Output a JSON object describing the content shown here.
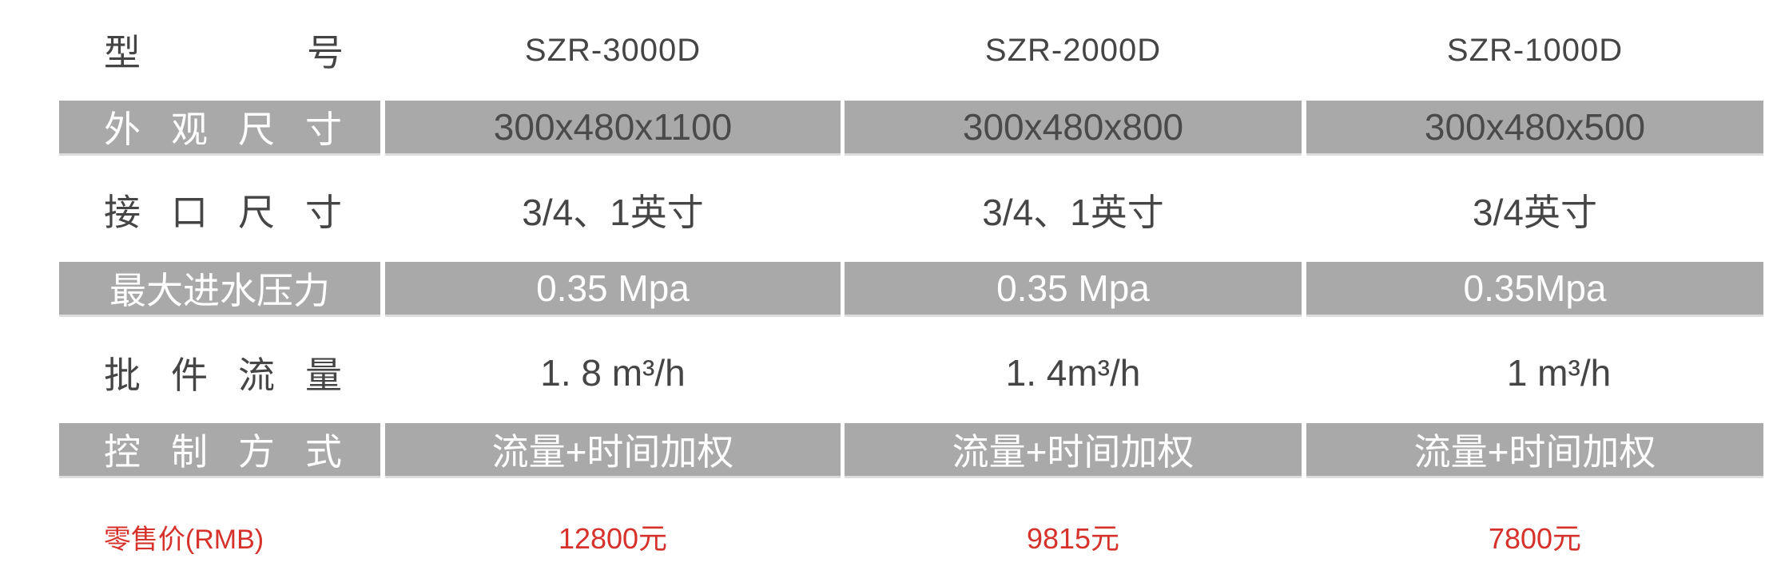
{
  "colors": {
    "band": "#a9a9a9",
    "text": "#454545",
    "price": "#d6312a"
  },
  "rows": [
    {
      "label": "型号",
      "label_chars": [
        "型",
        "号"
      ],
      "values": [
        "SZR-3000D",
        "SZR-2000D",
        "SZR-1000D"
      ]
    },
    {
      "label": "外观尺寸",
      "label_chars": [
        "外",
        "观",
        "尺",
        "寸"
      ],
      "values": [
        "300x480x1100",
        "300x480x800",
        "300x480x500"
      ]
    },
    {
      "label": "接口尺寸",
      "label_chars": [
        "接",
        "口",
        "尺",
        "寸"
      ],
      "values": [
        "3/4、1英寸",
        "3/4、1英寸",
        "3/4英寸"
      ]
    },
    {
      "label": "最大进水压力",
      "values": [
        "0.35 Mpa",
        "0.35 Mpa",
        "0.35Mpa"
      ]
    },
    {
      "label": "批件流量",
      "label_chars": [
        "批",
        "件",
        "流",
        "量"
      ],
      "values": [
        "1. 8 m³/h",
        "1. 4m³/h",
        "1 m³/h"
      ]
    },
    {
      "label": "控制方式",
      "label_chars": [
        "控",
        "制",
        "方",
        "式"
      ],
      "values": [
        "流量+时间加权",
        "流量+时间加权",
        "流量+时间加权"
      ]
    },
    {
      "label": "零售价(RMB)",
      "values": [
        "12800元",
        "9815元",
        "7800元"
      ]
    }
  ]
}
